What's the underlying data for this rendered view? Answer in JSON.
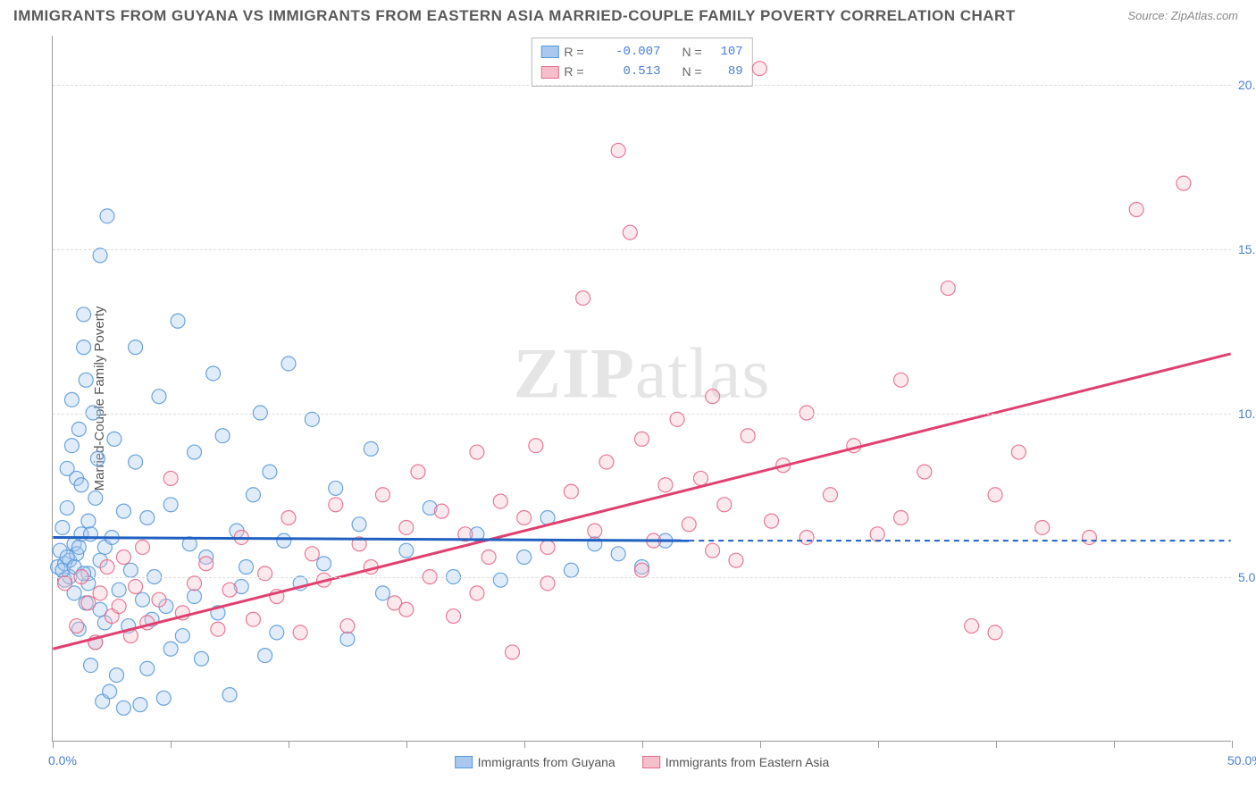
{
  "title": "IMMIGRANTS FROM GUYANA VS IMMIGRANTS FROM EASTERN ASIA MARRIED-COUPLE FAMILY POVERTY CORRELATION CHART",
  "source": "Source: ZipAtlas.com",
  "y_axis_label": "Married-Couple Family Poverty",
  "watermark_bold": "ZIP",
  "watermark_light": "atlas",
  "chart": {
    "type": "scatter",
    "xlim": [
      0,
      50
    ],
    "ylim": [
      0,
      21.5
    ],
    "x_ticks": [
      0,
      5,
      10,
      15,
      20,
      25,
      30,
      35,
      40,
      45,
      50
    ],
    "x_tick_labels_shown": {
      "0": "0.0%",
      "50": "50.0%"
    },
    "y_gridlines": [
      5,
      10,
      15,
      20
    ],
    "y_tick_labels": {
      "5": "5.0%",
      "10": "10.0%",
      "15": "15.0%",
      "20": "20.0%"
    },
    "grid_color": "#dddddd",
    "axis_color": "#999999",
    "marker_radius": 8,
    "series": [
      {
        "name": "Immigrants from Guyana",
        "fill": "#a8c8f0",
        "stroke": "#5a9ad8",
        "line_color": "#2060c0",
        "trend": {
          "x1": 0,
          "y1": 6.2,
          "x2": 27,
          "y2": 6.1,
          "dash_x1": 27,
          "dash_x2": 50,
          "dash_y": 6.1
        },
        "R": "-0.007",
        "N": "107",
        "points": [
          [
            0.2,
            5.3
          ],
          [
            0.3,
            5.8
          ],
          [
            0.4,
            6.5
          ],
          [
            0.5,
            4.9
          ],
          [
            0.5,
            5.4
          ],
          [
            0.6,
            8.3
          ],
          [
            0.6,
            7.1
          ],
          [
            0.7,
            5.0
          ],
          [
            0.7,
            5.5
          ],
          [
            0.8,
            9.0
          ],
          [
            0.8,
            10.4
          ],
          [
            0.9,
            6.0
          ],
          [
            0.9,
            4.5
          ],
          [
            1.0,
            5.7
          ],
          [
            1.0,
            8.0
          ],
          [
            1.1,
            3.4
          ],
          [
            1.1,
            9.5
          ],
          [
            1.2,
            7.8
          ],
          [
            1.2,
            6.3
          ],
          [
            1.3,
            12.0
          ],
          [
            1.3,
            13.0
          ],
          [
            1.4,
            4.2
          ],
          [
            1.4,
            11.0
          ],
          [
            1.5,
            5.1
          ],
          [
            1.5,
            6.7
          ],
          [
            1.6,
            2.3
          ],
          [
            1.7,
            10.0
          ],
          [
            1.8,
            3.0
          ],
          [
            1.8,
            7.4
          ],
          [
            1.9,
            8.6
          ],
          [
            2.0,
            4.0
          ],
          [
            2.0,
            14.8
          ],
          [
            2.1,
            1.2
          ],
          [
            2.2,
            5.9
          ],
          [
            2.3,
            16.0
          ],
          [
            2.4,
            1.5
          ],
          [
            2.5,
            6.2
          ],
          [
            2.6,
            9.2
          ],
          [
            2.7,
            2.0
          ],
          [
            2.8,
            4.6
          ],
          [
            3.0,
            1.0
          ],
          [
            3.0,
            7.0
          ],
          [
            3.2,
            3.5
          ],
          [
            3.3,
            5.2
          ],
          [
            3.5,
            8.5
          ],
          [
            3.5,
            12.0
          ],
          [
            3.7,
            1.1
          ],
          [
            3.8,
            4.3
          ],
          [
            4.0,
            2.2
          ],
          [
            4.0,
            6.8
          ],
          [
            4.2,
            3.7
          ],
          [
            4.3,
            5.0
          ],
          [
            4.5,
            10.5
          ],
          [
            4.7,
            1.3
          ],
          [
            4.8,
            4.1
          ],
          [
            5.0,
            7.2
          ],
          [
            5.0,
            2.8
          ],
          [
            5.3,
            12.8
          ],
          [
            5.5,
            3.2
          ],
          [
            5.8,
            6.0
          ],
          [
            6.0,
            4.4
          ],
          [
            6.0,
            8.8
          ],
          [
            6.3,
            2.5
          ],
          [
            6.5,
            5.6
          ],
          [
            6.8,
            11.2
          ],
          [
            7.0,
            3.9
          ],
          [
            7.2,
            9.3
          ],
          [
            7.5,
            1.4
          ],
          [
            7.8,
            6.4
          ],
          [
            8.0,
            4.7
          ],
          [
            8.2,
            5.3
          ],
          [
            8.5,
            7.5
          ],
          [
            8.8,
            10.0
          ],
          [
            9.0,
            2.6
          ],
          [
            9.2,
            8.2
          ],
          [
            9.5,
            3.3
          ],
          [
            9.8,
            6.1
          ],
          [
            10.0,
            11.5
          ],
          [
            10.5,
            4.8
          ],
          [
            11.0,
            9.8
          ],
          [
            11.5,
            5.4
          ],
          [
            12.0,
            7.7
          ],
          [
            12.5,
            3.1
          ],
          [
            13.0,
            6.6
          ],
          [
            13.5,
            8.9
          ],
          [
            14.0,
            4.5
          ],
          [
            15.0,
            5.8
          ],
          [
            16.0,
            7.1
          ],
          [
            17.0,
            5.0
          ],
          [
            18.0,
            6.3
          ],
          [
            19.0,
            4.9
          ],
          [
            20.0,
            5.6
          ],
          [
            21.0,
            6.8
          ],
          [
            22.0,
            5.2
          ],
          [
            23.0,
            6.0
          ],
          [
            24.0,
            5.7
          ],
          [
            25.0,
            5.3
          ],
          [
            26.0,
            6.1
          ],
          [
            1.5,
            4.8
          ],
          [
            2.2,
            3.6
          ],
          [
            0.4,
            5.2
          ],
          [
            0.6,
            5.6
          ],
          [
            0.9,
            5.3
          ],
          [
            1.1,
            5.9
          ],
          [
            1.3,
            5.1
          ],
          [
            1.6,
            6.3
          ],
          [
            2.0,
            5.5
          ]
        ]
      },
      {
        "name": "Immigrants from Eastern Asia",
        "fill": "#f5c0cc",
        "stroke": "#e56b8a",
        "line_color": "#e04070",
        "trend": {
          "x1": 0,
          "y1": 2.8,
          "x2": 50,
          "y2": 11.8
        },
        "R": "0.513",
        "N": "89",
        "points": [
          [
            0.5,
            4.8
          ],
          [
            1.0,
            3.5
          ],
          [
            1.2,
            5.0
          ],
          [
            1.5,
            4.2
          ],
          [
            1.8,
            3.0
          ],
          [
            2.0,
            4.5
          ],
          [
            2.3,
            5.3
          ],
          [
            2.5,
            3.8
          ],
          [
            2.8,
            4.1
          ],
          [
            3.0,
            5.6
          ],
          [
            3.3,
            3.2
          ],
          [
            3.5,
            4.7
          ],
          [
            3.8,
            5.9
          ],
          [
            4.0,
            3.6
          ],
          [
            4.5,
            4.3
          ],
          [
            5.0,
            8.0
          ],
          [
            5.5,
            3.9
          ],
          [
            6.0,
            4.8
          ],
          [
            6.5,
            5.4
          ],
          [
            7.0,
            3.4
          ],
          [
            7.5,
            4.6
          ],
          [
            8.0,
            6.2
          ],
          [
            8.5,
            3.7
          ],
          [
            9.0,
            5.1
          ],
          [
            9.5,
            4.4
          ],
          [
            10.0,
            6.8
          ],
          [
            10.5,
            3.3
          ],
          [
            11.0,
            5.7
          ],
          [
            11.5,
            4.9
          ],
          [
            12.0,
            7.2
          ],
          [
            12.5,
            3.5
          ],
          [
            13.0,
            6.0
          ],
          [
            13.5,
            5.3
          ],
          [
            14.0,
            7.5
          ],
          [
            14.5,
            4.2
          ],
          [
            15.0,
            6.5
          ],
          [
            15.5,
            8.2
          ],
          [
            16.0,
            5.0
          ],
          [
            16.5,
            7.0
          ],
          [
            17.0,
            3.8
          ],
          [
            17.5,
            6.3
          ],
          [
            18.0,
            8.8
          ],
          [
            18.5,
            5.6
          ],
          [
            19.0,
            7.3
          ],
          [
            19.5,
            2.7
          ],
          [
            20.0,
            6.8
          ],
          [
            20.5,
            9.0
          ],
          [
            21.0,
            5.9
          ],
          [
            22.0,
            7.6
          ],
          [
            22.5,
            13.5
          ],
          [
            23.0,
            6.4
          ],
          [
            23.5,
            8.5
          ],
          [
            24.0,
            18.0
          ],
          [
            24.5,
            15.5
          ],
          [
            25.0,
            9.2
          ],
          [
            25.5,
            6.1
          ],
          [
            26.0,
            7.8
          ],
          [
            26.5,
            9.8
          ],
          [
            27.0,
            6.6
          ],
          [
            27.5,
            8.0
          ],
          [
            28.0,
            10.5
          ],
          [
            28.5,
            7.2
          ],
          [
            29.0,
            5.5
          ],
          [
            29.5,
            9.3
          ],
          [
            30.0,
            20.5
          ],
          [
            30.5,
            6.7
          ],
          [
            31.0,
            8.4
          ],
          [
            32.0,
            10.0
          ],
          [
            33.0,
            7.5
          ],
          [
            34.0,
            9.0
          ],
          [
            35.0,
            6.3
          ],
          [
            36.0,
            11.0
          ],
          [
            37.0,
            8.2
          ],
          [
            38.0,
            13.8
          ],
          [
            39.0,
            3.5
          ],
          [
            40.0,
            3.3
          ],
          [
            41.0,
            8.8
          ],
          [
            42.0,
            6.5
          ],
          [
            44.0,
            6.2
          ],
          [
            46.0,
            16.2
          ],
          [
            48.0,
            17.0
          ],
          [
            15.0,
            4.0
          ],
          [
            18.0,
            4.5
          ],
          [
            21.0,
            4.8
          ],
          [
            25.0,
            5.2
          ],
          [
            28.0,
            5.8
          ],
          [
            32.0,
            6.2
          ],
          [
            36.0,
            6.8
          ],
          [
            40.0,
            7.5
          ]
        ]
      }
    ]
  },
  "legend_labels": {
    "R_eq": "R =",
    "N_eq": "N ="
  }
}
